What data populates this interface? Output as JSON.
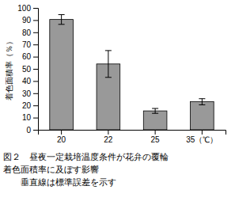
{
  "chart_data": {
    "type": "bar",
    "categories": [
      "20",
      "22",
      "25",
      "35（℃）"
    ],
    "values": [
      90.5,
      54.0,
      15.5,
      23.0
    ],
    "errors": [
      4.0,
      11.0,
      2.0,
      2.5
    ],
    "color": "#999999",
    "ylabel": "着色面積率（％）",
    "ylim": [
      0,
      100
    ],
    "yticks": [
      0,
      10,
      20,
      30,
      40,
      50,
      60,
      70,
      80,
      90,
      100
    ],
    "grid": false,
    "annotations": [
      "図２　昼夜一定栽培温度条件が花弁の覆輪",
      "着色面積率に及ぼす影響",
      "　　垂直線は標準誤差を示す"
    ]
  }
}
